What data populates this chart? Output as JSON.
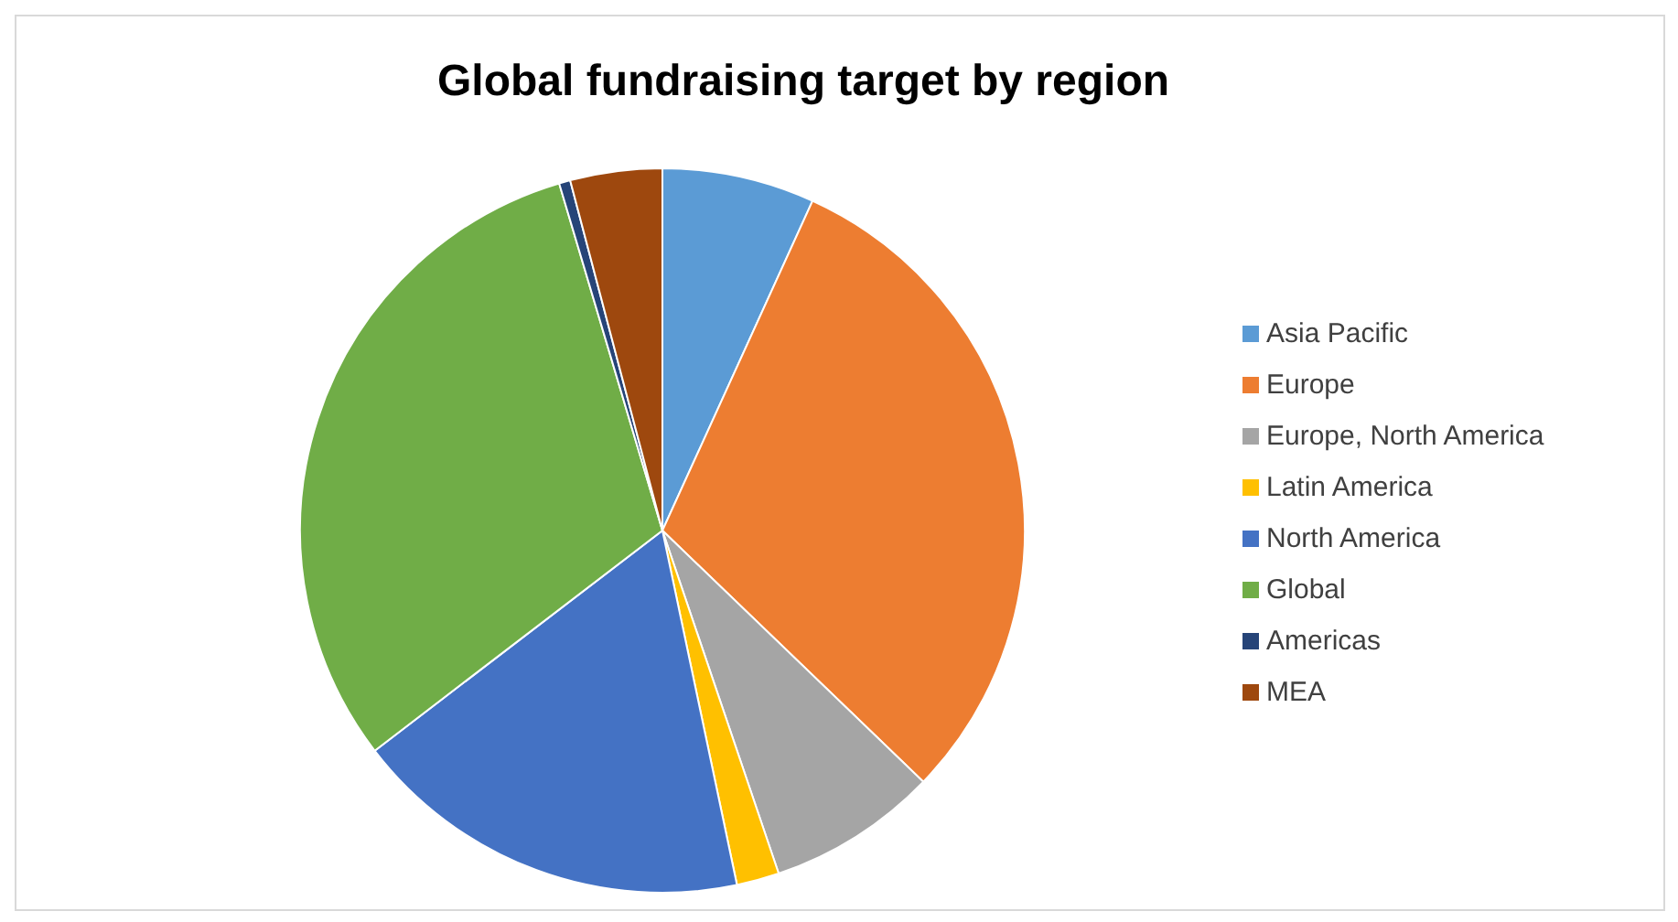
{
  "chart_data": {
    "type": "pie",
    "title": "Global fundraising target by region",
    "categories": [
      "Asia Pacific",
      "Europe",
      "Europe, North America",
      "Latin America",
      "North America",
      "Global",
      "Americas",
      "MEA"
    ],
    "values": [
      6.8,
      30.4,
      7.6,
      1.9,
      17.9,
      30.8,
      0.5,
      4.1
    ],
    "colors": [
      "#5b9bd5",
      "#ed7d31",
      "#a5a5a5",
      "#ffc000",
      "#4472c4",
      "#70ad47",
      "#264478",
      "#9e480e"
    ],
    "legend": "right"
  }
}
